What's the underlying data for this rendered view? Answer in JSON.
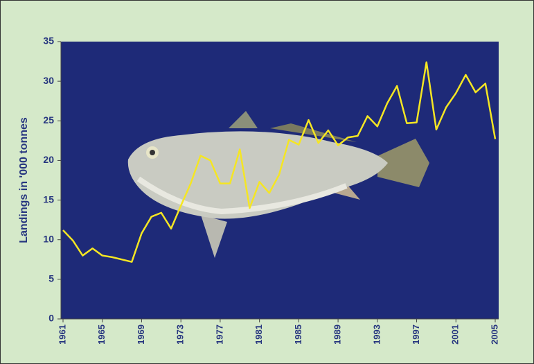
{
  "chart_data": {
    "type": "line",
    "y_label": "Landings in '000 tonnes",
    "x": [
      1961,
      1962,
      1963,
      1964,
      1965,
      1966,
      1967,
      1968,
      1969,
      1970,
      1971,
      1972,
      1973,
      1974,
      1975,
      1976,
      1977,
      1978,
      1979,
      1980,
      1981,
      1982,
      1983,
      1984,
      1985,
      1986,
      1987,
      1988,
      1989,
      1990,
      1991,
      1992,
      1993,
      1994,
      1995,
      1996,
      1997,
      1998,
      1999,
      2000,
      2001,
      2002,
      2003,
      2004,
      2005
    ],
    "series": [
      {
        "color": "#f5e623",
        "values": [
          11.2,
          9.9,
          8.0,
          8.9,
          8.0,
          7.8,
          7.5,
          7.2,
          10.8,
          12.9,
          13.4,
          11.4,
          14.3,
          17.1,
          20.6,
          20.0,
          17.1,
          17.1,
          21.4,
          14.0,
          17.3,
          15.9,
          18.2,
          22.6,
          22.0,
          25.1,
          22.2,
          23.8,
          21.9,
          22.9,
          23.1,
          25.6,
          24.3,
          27.2,
          29.4,
          24.7,
          24.8,
          32.4,
          23.9,
          26.7,
          28.5,
          30.8,
          28.6,
          29.7,
          22.7
        ]
      }
    ],
    "xlim": [
      1961,
      2005
    ],
    "xticks": [
      1961,
      1965,
      1969,
      1973,
      1977,
      1981,
      1985,
      1989,
      1993,
      1997,
      2001,
      2005
    ],
    "ylim": [
      0,
      35
    ],
    "yticks": [
      0,
      5,
      10,
      15,
      20,
      25,
      30,
      35
    ]
  }
}
